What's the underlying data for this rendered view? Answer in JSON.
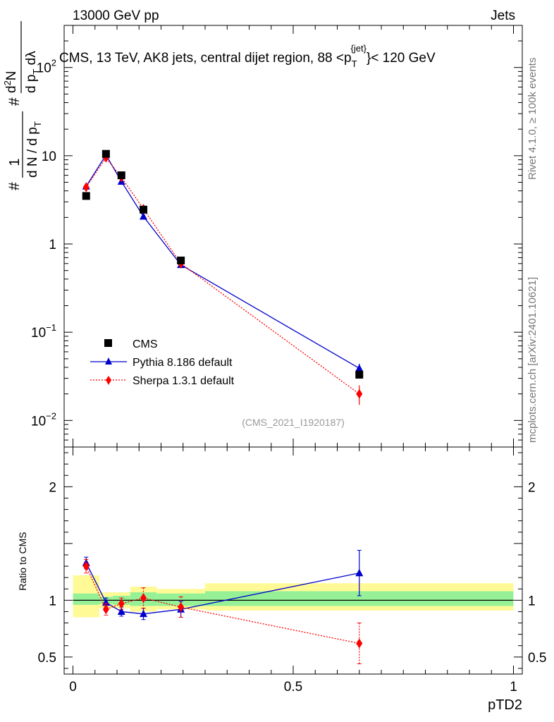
{
  "header": {
    "energy_label": "13000 GeV pp",
    "category_label": "Jets"
  },
  "side_labels": {
    "rivet": "Rivet 4.1.0, ≥ 100k events",
    "mcplots": "mcplots.cern.ch [arXiv:2401.10621]"
  },
  "chart_data": [
    {
      "type": "line",
      "panel": "main",
      "title": "CMS, 13 TeV, AK8 jets, central dijet region, 88 <p_T^{jet}< 120 GeV",
      "title_parts": {
        "main": "CMS, 13 TeV, AK8 jets, central dijet region, 88 <p",
        "sub": "T",
        "sup": "{jet}",
        "tail": "}< 120 GeV"
      },
      "ylabel": "1/dN/dp_T d^2N/dp_T dlambda",
      "ylabel_parts": {
        "num1": "1",
        "den1": "d N / d p",
        "den1_sub": "T",
        "num2": "d",
        "num2_sup": "2",
        "num2_tail": "N",
        "den2": "d p",
        "den2_sub": "T",
        "den2_tail": " dλ",
        "hash": "#"
      },
      "yscale": "log",
      "ylim": [
        0.005,
        300
      ],
      "xlim": [
        -0.02,
        1.02
      ],
      "y_tick_labels": [
        {
          "base": "10",
          "exp": "−2",
          "value": 0.01
        },
        {
          "base": "10",
          "exp": "−1",
          "value": 0.1
        },
        {
          "base": "1",
          "exp": "",
          "value": 1
        },
        {
          "base": "10",
          "exp": "",
          "value": 10
        },
        {
          "base": "10",
          "exp": "2",
          "value": 100
        }
      ],
      "reference": "(CMS_2021_I1920187)",
      "legend_position": "middle-left",
      "series": [
        {
          "name": "CMS",
          "color": "#000000",
          "marker": "square",
          "x": [
            0.03,
            0.075,
            0.11,
            0.16,
            0.245,
            0.65
          ],
          "values": [
            3.5,
            10.5,
            6.0,
            2.45,
            0.65,
            0.033
          ],
          "errors": [
            0.1,
            0.25,
            0.15,
            0.07,
            0.02,
            0.002
          ]
        },
        {
          "name": "Pythia 8.186 default",
          "color": "#0000cc",
          "marker": "triangle",
          "line": "solid",
          "x": [
            0.03,
            0.075,
            0.11,
            0.16,
            0.245,
            0.65
          ],
          "values": [
            4.5,
            10.2,
            5.1,
            2.05,
            0.58,
            0.039
          ],
          "errors": [
            0.2,
            0.35,
            0.2,
            0.08,
            0.03,
            0.005
          ]
        },
        {
          "name": "Sherpa 1.3.1 default",
          "color": "#ff0000",
          "marker": "diamond",
          "line": "dotted",
          "x": [
            0.03,
            0.075,
            0.11,
            0.16,
            0.245,
            0.65
          ],
          "values": [
            4.4,
            9.5,
            5.7,
            2.5,
            0.6,
            0.02
          ],
          "errors": [
            0.2,
            0.4,
            0.25,
            0.15,
            0.04,
            0.005
          ]
        }
      ]
    },
    {
      "type": "line",
      "panel": "ratio",
      "ylabel": "Ratio to CMS",
      "xlabel": "pTD2",
      "yscale": "linear",
      "ylim": [
        0.35,
        2.35
      ],
      "xlim": [
        -0.02,
        1.02
      ],
      "x_tick_labels": [
        {
          "label": "0",
          "value": 0
        },
        {
          "label": "0.5",
          "value": 0.5
        },
        {
          "label": "1",
          "value": 1
        }
      ],
      "y_tick_labels": [
        {
          "label": "0.5",
          "value": 0.5
        },
        {
          "label": "1",
          "value": 1
        },
        {
          "label": "2",
          "value": 2
        }
      ],
      "bands": [
        {
          "x0": 0.0,
          "x1": 0.06,
          "yellow": [
            0.85,
            1.22
          ],
          "green": [
            0.96,
            1.06
          ]
        },
        {
          "x0": 0.06,
          "x1": 0.09,
          "yellow": [
            0.93,
            1.07
          ],
          "green": [
            0.97,
            1.03
          ]
        },
        {
          "x0": 0.09,
          "x1": 0.13,
          "yellow": [
            0.93,
            1.07
          ],
          "green": [
            0.96,
            1.04
          ]
        },
        {
          "x0": 0.13,
          "x1": 0.19,
          "yellow": [
            0.9,
            1.12
          ],
          "green": [
            0.95,
            1.07
          ]
        },
        {
          "x0": 0.19,
          "x1": 0.3,
          "yellow": [
            0.92,
            1.1
          ],
          "green": [
            0.95,
            1.06
          ]
        },
        {
          "x0": 0.3,
          "x1": 1.0,
          "yellow": [
            0.91,
            1.15
          ],
          "green": [
            0.95,
            1.08
          ]
        }
      ],
      "series": [
        {
          "name": "Pythia 8.186 default",
          "color": "#0000cc",
          "x": [
            0.03,
            0.075,
            0.11,
            0.16,
            0.245,
            0.65
          ],
          "values": [
            1.33,
            0.98,
            0.9,
            0.88,
            0.92,
            1.24
          ],
          "errors": [
            0.05,
            0.04,
            0.04,
            0.05,
            0.07,
            0.2
          ]
        },
        {
          "name": "Sherpa 1.3.1 default",
          "color": "#ff0000",
          "x": [
            0.03,
            0.075,
            0.11,
            0.16,
            0.245,
            0.65
          ],
          "values": [
            1.3,
            0.92,
            0.97,
            1.02,
            0.94,
            0.62
          ],
          "errors": [
            0.06,
            0.05,
            0.05,
            0.09,
            0.09,
            0.18
          ]
        }
      ]
    }
  ]
}
